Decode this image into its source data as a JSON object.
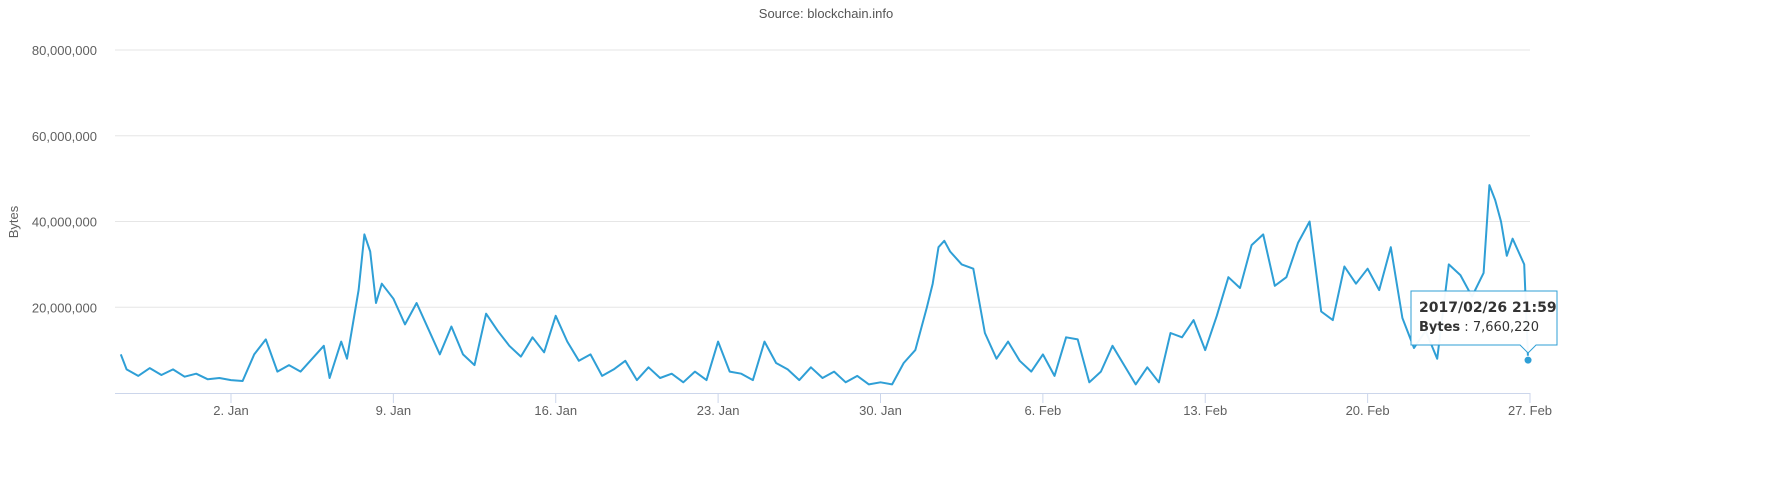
{
  "chart_data": {
    "type": "line",
    "subtitle": "Source: blockchain.info",
    "ylabel": "Bytes",
    "xlabel": "",
    "ylim": [
      0,
      80000000
    ],
    "xlim": [
      "2016-12-28T00:00",
      "2017-02-27T00:00"
    ],
    "yticks": [
      {
        "value": 20000000,
        "label": "20,000,000"
      },
      {
        "value": 40000000,
        "label": "40,000,000"
      },
      {
        "value": 60000000,
        "label": "60,000,000"
      },
      {
        "value": 80000000,
        "label": "80,000,000"
      }
    ],
    "xticks": [
      {
        "date": "2017-01-02",
        "label": "2. Jan"
      },
      {
        "date": "2017-01-09",
        "label": "9. Jan"
      },
      {
        "date": "2017-01-16",
        "label": "16. Jan"
      },
      {
        "date": "2017-01-23",
        "label": "23. Jan"
      },
      {
        "date": "2017-01-30",
        "label": "30. Jan"
      },
      {
        "date": "2017-02-06",
        "label": "6. Feb"
      },
      {
        "date": "2017-02-13",
        "label": "13. Feb"
      },
      {
        "date": "2017-02-20",
        "label": "20. Feb"
      },
      {
        "date": "2017-02-27",
        "label": "27. Feb"
      }
    ],
    "grid": true,
    "series": [
      {
        "color": "#2f9fd6",
        "points": [
          [
            "2016-12-28T06:00",
            9000000
          ],
          [
            "2016-12-28T12:00",
            5500000
          ],
          [
            "2016-12-29T00:00",
            4000000
          ],
          [
            "2016-12-29T12:00",
            5800000
          ],
          [
            "2016-12-30T00:00",
            4200000
          ],
          [
            "2016-12-30T12:00",
            5500000
          ],
          [
            "2016-12-31T00:00",
            3800000
          ],
          [
            "2016-12-31T12:00",
            4500000
          ],
          [
            "2017-01-01T00:00",
            3200000
          ],
          [
            "2017-01-01T12:00",
            3500000
          ],
          [
            "2017-01-02T00:00",
            3000000
          ],
          [
            "2017-01-02T12:00",
            2800000
          ],
          [
            "2017-01-03T00:00",
            9000000
          ],
          [
            "2017-01-03T12:00",
            12500000
          ],
          [
            "2017-01-04T00:00",
            5000000
          ],
          [
            "2017-01-04T12:00",
            6500000
          ],
          [
            "2017-01-05T00:00",
            5000000
          ],
          [
            "2017-01-05T12:00",
            8000000
          ],
          [
            "2017-01-06T00:00",
            11000000
          ],
          [
            "2017-01-06T06:00",
            3500000
          ],
          [
            "2017-01-06T18:00",
            12000000
          ],
          [
            "2017-01-07T00:00",
            8000000
          ],
          [
            "2017-01-07T12:00",
            24000000
          ],
          [
            "2017-01-07T18:00",
            37000000
          ],
          [
            "2017-01-08T00:00",
            33000000
          ],
          [
            "2017-01-08T06:00",
            21000000
          ],
          [
            "2017-01-08T12:00",
            25500000
          ],
          [
            "2017-01-09T00:00",
            22000000
          ],
          [
            "2017-01-09T12:00",
            16000000
          ],
          [
            "2017-01-10T00:00",
            21000000
          ],
          [
            "2017-01-10T12:00",
            15000000
          ],
          [
            "2017-01-11T00:00",
            9000000
          ],
          [
            "2017-01-11T12:00",
            15500000
          ],
          [
            "2017-01-12T00:00",
            9000000
          ],
          [
            "2017-01-12T12:00",
            6500000
          ],
          [
            "2017-01-13T00:00",
            18500000
          ],
          [
            "2017-01-13T12:00",
            14500000
          ],
          [
            "2017-01-14T00:00",
            11000000
          ],
          [
            "2017-01-14T12:00",
            8500000
          ],
          [
            "2017-01-15T00:00",
            13000000
          ],
          [
            "2017-01-15T12:00",
            9500000
          ],
          [
            "2017-01-16T00:00",
            18000000
          ],
          [
            "2017-01-16T12:00",
            12000000
          ],
          [
            "2017-01-17T00:00",
            7500000
          ],
          [
            "2017-01-17T12:00",
            9000000
          ],
          [
            "2017-01-18T00:00",
            4000000
          ],
          [
            "2017-01-18T12:00",
            5500000
          ],
          [
            "2017-01-19T00:00",
            7500000
          ],
          [
            "2017-01-19T12:00",
            3000000
          ],
          [
            "2017-01-20T00:00",
            6000000
          ],
          [
            "2017-01-20T12:00",
            3500000
          ],
          [
            "2017-01-21T00:00",
            4500000
          ],
          [
            "2017-01-21T12:00",
            2500000
          ],
          [
            "2017-01-22T00:00",
            5000000
          ],
          [
            "2017-01-22T12:00",
            3000000
          ],
          [
            "2017-01-23T00:00",
            12000000
          ],
          [
            "2017-01-23T12:00",
            5000000
          ],
          [
            "2017-01-24T00:00",
            4500000
          ],
          [
            "2017-01-24T12:00",
            3000000
          ],
          [
            "2017-01-25T00:00",
            12000000
          ],
          [
            "2017-01-25T12:00",
            7000000
          ],
          [
            "2017-01-26T00:00",
            5500000
          ],
          [
            "2017-01-26T12:00",
            3000000
          ],
          [
            "2017-01-27T00:00",
            6000000
          ],
          [
            "2017-01-27T12:00",
            3500000
          ],
          [
            "2017-01-28T00:00",
            5000000
          ],
          [
            "2017-01-28T12:00",
            2500000
          ],
          [
            "2017-01-29T00:00",
            4000000
          ],
          [
            "2017-01-29T12:00",
            2000000
          ],
          [
            "2017-01-30T00:00",
            2500000
          ],
          [
            "2017-01-30T12:00",
            2000000
          ],
          [
            "2017-01-31T00:00",
            7000000
          ],
          [
            "2017-01-31T12:00",
            10000000
          ],
          [
            "2017-02-01T00:00",
            20000000
          ],
          [
            "2017-02-01T06:00",
            25500000
          ],
          [
            "2017-02-01T12:00",
            34000000
          ],
          [
            "2017-02-01T18:00",
            35500000
          ],
          [
            "2017-02-02T00:00",
            33000000
          ],
          [
            "2017-02-02T12:00",
            30000000
          ],
          [
            "2017-02-03T00:00",
            29000000
          ],
          [
            "2017-02-03T12:00",
            14000000
          ],
          [
            "2017-02-04T00:00",
            8000000
          ],
          [
            "2017-02-04T12:00",
            12000000
          ],
          [
            "2017-02-05T00:00",
            7500000
          ],
          [
            "2017-02-05T12:00",
            5000000
          ],
          [
            "2017-02-06T00:00",
            9000000
          ],
          [
            "2017-02-06T12:00",
            4000000
          ],
          [
            "2017-02-07T00:00",
            13000000
          ],
          [
            "2017-02-07T12:00",
            12500000
          ],
          [
            "2017-02-08T00:00",
            2500000
          ],
          [
            "2017-02-08T12:00",
            5000000
          ],
          [
            "2017-02-09T00:00",
            11000000
          ],
          [
            "2017-02-09T12:00",
            6500000
          ],
          [
            "2017-02-10T00:00",
            2000000
          ],
          [
            "2017-02-10T12:00",
            6000000
          ],
          [
            "2017-02-11T00:00",
            2500000
          ],
          [
            "2017-02-11T12:00",
            14000000
          ],
          [
            "2017-02-12T00:00",
            13000000
          ],
          [
            "2017-02-12T12:00",
            17000000
          ],
          [
            "2017-02-13T00:00",
            10000000
          ],
          [
            "2017-02-13T12:00",
            18000000
          ],
          [
            "2017-02-14T00:00",
            27000000
          ],
          [
            "2017-02-14T12:00",
            24500000
          ],
          [
            "2017-02-15T00:00",
            34500000
          ],
          [
            "2017-02-15T12:00",
            37000000
          ],
          [
            "2017-02-16T00:00",
            25000000
          ],
          [
            "2017-02-16T12:00",
            27000000
          ],
          [
            "2017-02-17T00:00",
            35000000
          ],
          [
            "2017-02-17T12:00",
            40000000
          ],
          [
            "2017-02-18T00:00",
            19000000
          ],
          [
            "2017-02-18T12:00",
            17000000
          ],
          [
            "2017-02-19T00:00",
            29500000
          ],
          [
            "2017-02-19T12:00",
            25500000
          ],
          [
            "2017-02-20T00:00",
            29000000
          ],
          [
            "2017-02-20T12:00",
            24000000
          ],
          [
            "2017-02-21T00:00",
            34000000
          ],
          [
            "2017-02-21T12:00",
            17500000
          ],
          [
            "2017-02-22T00:00",
            10500000
          ],
          [
            "2017-02-22T12:00",
            14500000
          ],
          [
            "2017-02-23T00:00",
            8000000
          ],
          [
            "2017-02-23T12:00",
            30000000
          ],
          [
            "2017-02-24T00:00",
            27500000
          ],
          [
            "2017-02-24T12:00",
            22500000
          ],
          [
            "2017-02-25T00:00",
            28000000
          ],
          [
            "2017-02-25T06:00",
            48500000
          ],
          [
            "2017-02-25T12:00",
            45000000
          ],
          [
            "2017-02-25T18:00",
            40000000
          ],
          [
            "2017-02-26T00:00",
            32000000
          ],
          [
            "2017-02-26T06:00",
            36000000
          ],
          [
            "2017-02-26T12:00",
            33000000
          ],
          [
            "2017-02-26T18:00",
            30000000
          ],
          [
            "2017-02-26T21:59",
            7660220
          ]
        ]
      }
    ],
    "tooltip": {
      "title": "2017/02/26 21:59",
      "label": "Bytes",
      "value": "7,660,220",
      "date": "2017-02-26T21:59",
      "y": 7660220
    }
  }
}
